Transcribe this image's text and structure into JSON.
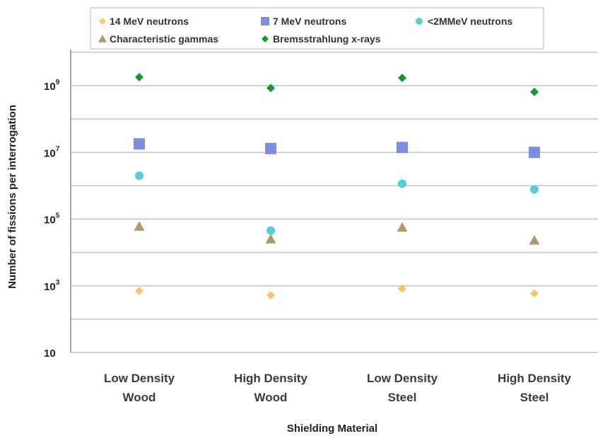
{
  "chart_data": {
    "type": "scatter",
    "title": "",
    "xlabel": "Shielding Material",
    "ylabel": "Number of fissions per interrogation",
    "y_scale": "log",
    "ylim": [
      10,
      10000000000
    ],
    "grid": true,
    "legend_position": "top",
    "y_ticks": [
      {
        "base": "10",
        "exp": "9",
        "value": 1000000000
      },
      {
        "base": "10",
        "exp": "7",
        "value": 10000000
      },
      {
        "base": "10",
        "exp": "5",
        "value": 100000
      },
      {
        "base": "10",
        "exp": "3",
        "value": 1000
      },
      {
        "base": "10",
        "exp": "",
        "value": 10
      }
    ],
    "categories": [
      [
        "Low Density",
        "Wood"
      ],
      [
        "High Density",
        "Wood"
      ],
      [
        "Low Density",
        "Steel"
      ],
      [
        "High Density",
        "Steel"
      ]
    ],
    "series": [
      {
        "name": "14 MeV neutrons",
        "marker": "diamond",
        "color": "#f9c46a",
        "values": [
          700,
          520,
          820,
          590
        ]
      },
      {
        "name": "7 MeV neutrons",
        "marker": "square",
        "color": "#7b8fde",
        "values": [
          18000000,
          13000000,
          14000000,
          10000000
        ]
      },
      {
        "name": "<2MMeV neutrons",
        "marker": "circle",
        "color": "#4fd1d6",
        "values": [
          2000000,
          null,
          1150000,
          780000
        ]
      },
      {
        "name": "Characteristic gammas",
        "marker": "triangle",
        "color": "#b19a6a",
        "values": [
          60000,
          25000,
          56000,
          23000
        ]
      },
      {
        "name": "Bremsstrahlung x-rays",
        "marker": "diamond",
        "color": "#119a32",
        "values": [
          1800000000,
          850000000,
          1700000000,
          650000000
        ]
      }
    ],
    "extra_points": [
      {
        "category_index": 1,
        "series": "<2MMeV neutrons",
        "value": 45000
      }
    ]
  }
}
